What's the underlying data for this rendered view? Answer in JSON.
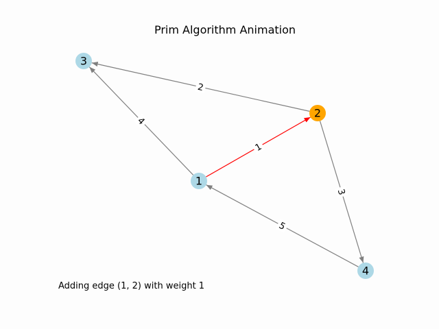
{
  "title": "Prim Algorithm Animation",
  "status": "Adding edge (1, 2) with weight 1",
  "colors": {
    "node_default": "#add8e6",
    "node_highlight": "#ffa500",
    "edge_default": "#808080",
    "edge_highlight": "#ff0000",
    "label_background": "#ffffff",
    "text": "#000000"
  },
  "nodes": [
    {
      "id": "1",
      "label": "1",
      "state": "default"
    },
    {
      "id": "2",
      "label": "2",
      "state": "highlight"
    },
    {
      "id": "3",
      "label": "3",
      "state": "default"
    },
    {
      "id": "4",
      "label": "4",
      "state": "default"
    }
  ],
  "edges": [
    {
      "source": "1",
      "target": "2",
      "weight": "1",
      "state": "highlight"
    },
    {
      "source": "1",
      "target": "3",
      "weight": "4",
      "state": "default"
    },
    {
      "source": "2",
      "target": "3",
      "weight": "2",
      "state": "default"
    },
    {
      "source": "2",
      "target": "4",
      "weight": "3",
      "state": "default"
    },
    {
      "source": "4",
      "target": "1",
      "weight": "5",
      "state": "default"
    }
  ]
}
